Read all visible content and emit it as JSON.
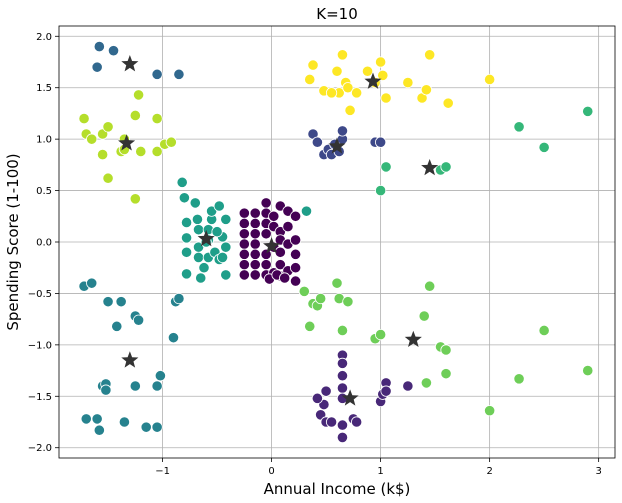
{
  "chart_data": {
    "type": "scatter",
    "title": "K=10",
    "xlabel": "Annual Income (k$)",
    "ylabel": "Spending Score (1-100)",
    "xlim": [
      -1.95,
      3.15
    ],
    "ylim": [
      -2.1,
      2.1
    ],
    "x_ticks": [
      -1,
      0,
      1,
      2,
      3
    ],
    "x_tick_labels": [
      "−1",
      "0",
      "1",
      "2",
      "3"
    ],
    "y_ticks": [
      -2.0,
      -1.5,
      -1.0,
      -0.5,
      0.0,
      0.5,
      1.0,
      1.5,
      2.0
    ],
    "y_tick_labels": [
      "−2.0",
      "−1.5",
      "−1.0",
      "−0.5",
      "0.0",
      "0.5",
      "1.0",
      "1.5",
      "2.0"
    ],
    "grid": true,
    "legend": "none",
    "centroid_color": "#333333",
    "series": [
      {
        "color": "#440154",
        "points": [
          [
            -0.25,
            0.28
          ],
          [
            -0.25,
            0.18
          ],
          [
            -0.25,
            0.08
          ],
          [
            -0.25,
            -0.02
          ],
          [
            -0.25,
            -0.12
          ],
          [
            -0.25,
            -0.22
          ],
          [
            -0.25,
            -0.32
          ],
          [
            -0.15,
            0.28
          ],
          [
            -0.15,
            0.18
          ],
          [
            -0.15,
            0.08
          ],
          [
            -0.15,
            -0.02
          ],
          [
            -0.15,
            -0.12
          ],
          [
            -0.15,
            -0.22
          ],
          [
            -0.15,
            -0.32
          ],
          [
            -0.05,
            0.38
          ],
          [
            -0.05,
            0.28
          ],
          [
            -0.05,
            0.18
          ],
          [
            -0.05,
            0.08
          ],
          [
            -0.05,
            -0.12
          ],
          [
            -0.05,
            -0.22
          ],
          [
            -0.05,
            -0.32
          ],
          [
            0.02,
            0.25
          ],
          [
            0.02,
            0.15
          ],
          [
            0.02,
            -0.05
          ],
          [
            0.02,
            -0.3
          ],
          [
            0.08,
            0.35
          ],
          [
            0.08,
            0.1
          ],
          [
            0.08,
            0.02
          ],
          [
            0.08,
            -0.1
          ],
          [
            0.08,
            -0.22
          ],
          [
            0.08,
            -0.33
          ],
          [
            0.15,
            0.3
          ],
          [
            0.15,
            0.15
          ],
          [
            0.15,
            -0.02
          ],
          [
            0.15,
            -0.28
          ],
          [
            0.22,
            0.25
          ],
          [
            0.22,
            0.02
          ],
          [
            0.22,
            -0.12
          ],
          [
            0.22,
            -0.25
          ],
          [
            0.22,
            -0.38
          ],
          [
            -0.02,
            -0.36
          ],
          [
            0.05,
            -0.32
          ],
          [
            0.12,
            -0.35
          ]
        ],
        "centroid": [
          0.0,
          -0.04
        ]
      },
      {
        "color": "#482878",
        "points": [
          [
            0.65,
            -1.1
          ],
          [
            0.65,
            -1.18
          ],
          [
            0.65,
            -1.3
          ],
          [
            0.65,
            -1.42
          ],
          [
            0.65,
            -1.52
          ],
          [
            0.65,
            -1.78
          ],
          [
            0.65,
            -1.9
          ],
          [
            0.5,
            -1.45
          ],
          [
            0.48,
            -1.58
          ],
          [
            0.45,
            -1.68
          ],
          [
            0.42,
            -1.52
          ],
          [
            0.5,
            -1.75
          ],
          [
            0.55,
            -1.75
          ],
          [
            0.75,
            -1.72
          ],
          [
            0.78,
            -1.75
          ],
          [
            1.0,
            -1.55
          ],
          [
            1.02,
            -1.48
          ],
          [
            1.05,
            -1.37
          ],
          [
            1.05,
            -1.45
          ],
          [
            1.25,
            -1.4
          ]
        ],
        "centroid": [
          0.72,
          -1.52
        ]
      },
      {
        "color": "#3e4989",
        "points": [
          [
            0.38,
            1.05
          ],
          [
            0.42,
            0.97
          ],
          [
            0.48,
            0.85
          ],
          [
            0.52,
            0.9
          ],
          [
            0.55,
            0.85
          ],
          [
            0.58,
            0.95
          ],
          [
            0.62,
            0.88
          ],
          [
            0.65,
            1.0
          ],
          [
            0.65,
            1.08
          ],
          [
            0.95,
            0.97
          ],
          [
            1.0,
            0.97
          ]
        ],
        "centroid": [
          0.6,
          0.93
        ]
      },
      {
        "color": "#31688e",
        "points": [
          [
            -1.58,
            1.9
          ],
          [
            -1.6,
            1.7
          ],
          [
            -1.45,
            1.86
          ],
          [
            -1.05,
            1.63
          ],
          [
            -0.85,
            1.63
          ]
        ],
        "centroid": [
          -1.3,
          1.73
        ]
      },
      {
        "color": "#26828e",
        "points": [
          [
            -1.72,
            -0.43
          ],
          [
            -1.65,
            -0.4
          ],
          [
            -1.5,
            -0.58
          ],
          [
            -1.38,
            -0.58
          ],
          [
            -1.42,
            -0.82
          ],
          [
            -1.25,
            -0.72
          ],
          [
            -1.22,
            -0.76
          ],
          [
            -1.55,
            -1.4
          ],
          [
            -1.52,
            -1.38
          ],
          [
            -1.52,
            -1.44
          ],
          [
            -1.25,
            -1.4
          ],
          [
            -1.05,
            -1.4
          ],
          [
            -1.02,
            -1.3
          ],
          [
            -1.7,
            -1.72
          ],
          [
            -1.6,
            -1.72
          ],
          [
            -1.58,
            -1.83
          ],
          [
            -1.35,
            -1.75
          ],
          [
            -1.15,
            -1.8
          ],
          [
            -1.05,
            -1.8
          ],
          [
            -0.88,
            -0.58
          ],
          [
            -0.85,
            -0.55
          ],
          [
            -0.9,
            -0.93
          ]
        ],
        "centroid": [
          -1.3,
          -1.15
        ]
      },
      {
        "color": "#1f9e89",
        "points": [
          [
            -0.82,
            0.58
          ],
          [
            -0.8,
            0.43
          ],
          [
            -0.78,
            0.19
          ],
          [
            -0.78,
            0.04
          ],
          [
            -0.78,
            -0.1
          ],
          [
            -0.78,
            -0.31
          ],
          [
            -0.7,
            0.38
          ],
          [
            -0.68,
            0.22
          ],
          [
            -0.67,
            0.12
          ],
          [
            -0.67,
            -0.05
          ],
          [
            -0.67,
            -0.15
          ],
          [
            -0.65,
            -0.35
          ],
          [
            -0.58,
            0.12
          ],
          [
            -0.58,
            0.02
          ],
          [
            -0.58,
            -0.15
          ],
          [
            -0.55,
            0.22
          ],
          [
            -0.55,
            0.3
          ],
          [
            -0.52,
            -0.1
          ],
          [
            -0.48,
            0.35
          ],
          [
            -0.48,
            -0.17
          ],
          [
            -0.45,
            -0.15
          ],
          [
            -0.45,
            0.05
          ],
          [
            -0.42,
            0.22
          ],
          [
            -0.42,
            -0.05
          ],
          [
            -0.42,
            -0.32
          ],
          [
            -0.6,
            0.0
          ],
          [
            -0.62,
            -0.25
          ],
          [
            -0.5,
            0.1
          ],
          [
            0.32,
            0.3
          ]
        ],
        "centroid": [
          -0.6,
          0.03
        ]
      },
      {
        "color": "#35b779",
        "points": [
          [
            1.05,
            0.73
          ],
          [
            1.0,
            0.5
          ],
          [
            1.55,
            0.7
          ],
          [
            1.6,
            0.73
          ],
          [
            2.27,
            1.12
          ],
          [
            2.5,
            0.92
          ],
          [
            2.9,
            1.27
          ]
        ],
        "centroid": [
          1.45,
          0.72
        ]
      },
      {
        "color": "#6ece58",
        "points": [
          [
            0.3,
            -0.48
          ],
          [
            0.38,
            -0.6
          ],
          [
            0.42,
            -0.62
          ],
          [
            0.45,
            -0.55
          ],
          [
            0.6,
            -0.4
          ],
          [
            0.62,
            -0.55
          ],
          [
            0.7,
            -0.58
          ],
          [
            0.35,
            -0.82
          ],
          [
            0.65,
            -0.86
          ],
          [
            0.95,
            -0.94
          ],
          [
            1.0,
            -0.9
          ],
          [
            1.4,
            -0.72
          ],
          [
            1.45,
            -0.43
          ],
          [
            1.55,
            -1.02
          ],
          [
            1.6,
            -1.05
          ],
          [
            1.42,
            -1.37
          ],
          [
            1.6,
            -1.28
          ],
          [
            2.0,
            -1.64
          ],
          [
            2.27,
            -1.33
          ],
          [
            2.5,
            -0.86
          ],
          [
            2.9,
            -1.25
          ]
        ],
        "centroid": [
          1.3,
          -0.95
        ]
      },
      {
        "color": "#b5de2b",
        "points": [
          [
            -1.72,
            1.2
          ],
          [
            -1.7,
            1.05
          ],
          [
            -1.65,
            1.0
          ],
          [
            -1.55,
            1.05
          ],
          [
            -1.55,
            0.85
          ],
          [
            -1.5,
            1.12
          ],
          [
            -1.5,
            0.62
          ],
          [
            -1.38,
            0.88
          ],
          [
            -1.35,
            0.9
          ],
          [
            -1.35,
            1.0
          ],
          [
            -1.25,
            1.23
          ],
          [
            -1.22,
            1.43
          ],
          [
            -1.2,
            0.88
          ],
          [
            -1.05,
            0.88
          ],
          [
            -1.05,
            1.2
          ],
          [
            -0.98,
            0.95
          ],
          [
            -0.92,
            0.97
          ],
          [
            -1.25,
            0.42
          ]
        ],
        "centroid": [
          -1.33,
          0.96
        ]
      },
      {
        "color": "#fde725",
        "points": [
          [
            0.38,
            1.72
          ],
          [
            0.35,
            1.58
          ],
          [
            0.48,
            1.47
          ],
          [
            0.6,
            1.66
          ],
          [
            0.62,
            1.45
          ],
          [
            0.65,
            1.82
          ],
          [
            0.68,
            1.55
          ],
          [
            0.7,
            1.5
          ],
          [
            0.72,
            1.28
          ],
          [
            0.78,
            1.45
          ],
          [
            0.95,
            1.55
          ],
          [
            1.0,
            1.75
          ],
          [
            1.02,
            1.62
          ],
          [
            1.05,
            1.4
          ],
          [
            1.25,
            1.55
          ],
          [
            1.38,
            1.4
          ],
          [
            1.42,
            1.48
          ],
          [
            1.45,
            1.82
          ],
          [
            1.62,
            1.35
          ],
          [
            2.0,
            1.58
          ],
          [
            0.88,
            1.66
          ],
          [
            0.55,
            1.45
          ]
        ],
        "centroid": [
          0.93,
          1.56
        ]
      }
    ]
  }
}
